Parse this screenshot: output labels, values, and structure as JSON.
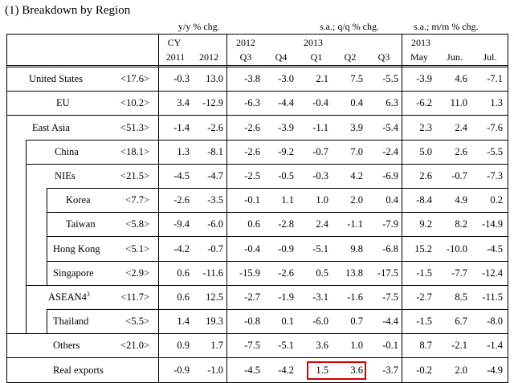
{
  "title": "(1) Breakdown by Region",
  "subheaders": {
    "yy": "y/y % chg.",
    "qq": "s.a.; q/q % chg.",
    "mm": "s.a.; m/m % chg."
  },
  "columns": {
    "cy": "CY",
    "y2011": "2011",
    "y2012": "2012",
    "q_year_2012": "2012",
    "q_year_2013": "2013",
    "m_year_2013": "2013",
    "q3a": "Q3",
    "q4": "Q4",
    "q1": "Q1",
    "q2": "Q2",
    "q3b": "Q3",
    "may": "May",
    "jun": "Jun.",
    "jul": "Jul."
  },
  "rows": [
    {
      "label": "United States",
      "share": "<17.6>",
      "values": [
        "-0.3",
        "13.0",
        "-3.8",
        "-3.0",
        "2.1",
        "7.5",
        "-5.5",
        "-3.9",
        "4.6",
        "-7.1"
      ]
    },
    {
      "label": "EU",
      "share": "<10.2>",
      "values": [
        "3.4",
        "-12.9",
        "-6.3",
        "-4.4",
        "-0.4",
        "0.4",
        "6.3",
        "-6.2",
        "11.0",
        "1.3"
      ]
    },
    {
      "label": "East Asia",
      "share": "<51.3>",
      "values": [
        "-1.4",
        "-2.6",
        "-2.6",
        "-3.9",
        "-1.1",
        "3.9",
        "-5.4",
        "2.3",
        "2.4",
        "-7.6"
      ]
    },
    {
      "label": "China",
      "share": "<18.1>",
      "values": [
        "1.3",
        "-8.1",
        "-2.6",
        "-9.2",
        "-0.7",
        "7.0",
        "-2.4",
        "5.0",
        "2.6",
        "-5.5"
      ]
    },
    {
      "label": "NIEs",
      "share": "<21.5>",
      "values": [
        "-4.5",
        "-4.7",
        "-2.5",
        "-0.5",
        "-0.3",
        "4.2",
        "-6.9",
        "2.6",
        "-0.7",
        "-7.3"
      ]
    },
    {
      "label": "Korea",
      "share": "<7.7>",
      "values": [
        "-2.6",
        "-3.5",
        "-0.1",
        "1.1",
        "1.0",
        "2.0",
        "0.4",
        "-8.4",
        "4.9",
        "0.2"
      ]
    },
    {
      "label": "Taiwan",
      "share": "<5.8>",
      "values": [
        "-9.4",
        "-6.0",
        "0.6",
        "-2.8",
        "2.4",
        "-1.1",
        "-7.9",
        "9.2",
        "8.2",
        "-14.9"
      ]
    },
    {
      "label": "Hong Kong",
      "share": "<5.1>",
      "values": [
        "-4.2",
        "-0.7",
        "-0.4",
        "-0.9",
        "-5.1",
        "9.8",
        "-6.8",
        "15.2",
        "-10.0",
        "-4.5"
      ]
    },
    {
      "label": "Singapore",
      "share": "<2.9>",
      "values": [
        "0.6",
        "-11.6",
        "-15.9",
        "-2.6",
        "0.5",
        "13.8",
        "-17.5",
        "-1.5",
        "-7.7",
        "-12.4"
      ]
    },
    {
      "label": "ASEAN4",
      "sup": "3",
      "share": "<11.7>",
      "values": [
        "0.6",
        "12.5",
        "-2.7",
        "-1.9",
        "-3.1",
        "-1.6",
        "-7.5",
        "-2.7",
        "8.5",
        "-11.5"
      ]
    },
    {
      "label": "Thailand",
      "share": "<5.5>",
      "values": [
        "1.4",
        "19.3",
        "-0.8",
        "0.1",
        "-6.0",
        "0.7",
        "-4.4",
        "-1.5",
        "6.7",
        "-8.0"
      ]
    },
    {
      "label": "Others",
      "share": "<21.0>",
      "values": [
        "0.9",
        "1.7",
        "-7.5",
        "-5.1",
        "3.6",
        "1.0",
        "-0.1",
        "8.7",
        "-2.1",
        "-1.4"
      ]
    },
    {
      "label": "Real exports",
      "share": "",
      "values": [
        "-0.9",
        "-1.0",
        "-4.5",
        "-4.2",
        "1.5",
        "3.6",
        "-3.7",
        "-0.2",
        "2.0",
        "-4.9"
      ]
    }
  ],
  "highlight_color": "#d40000"
}
